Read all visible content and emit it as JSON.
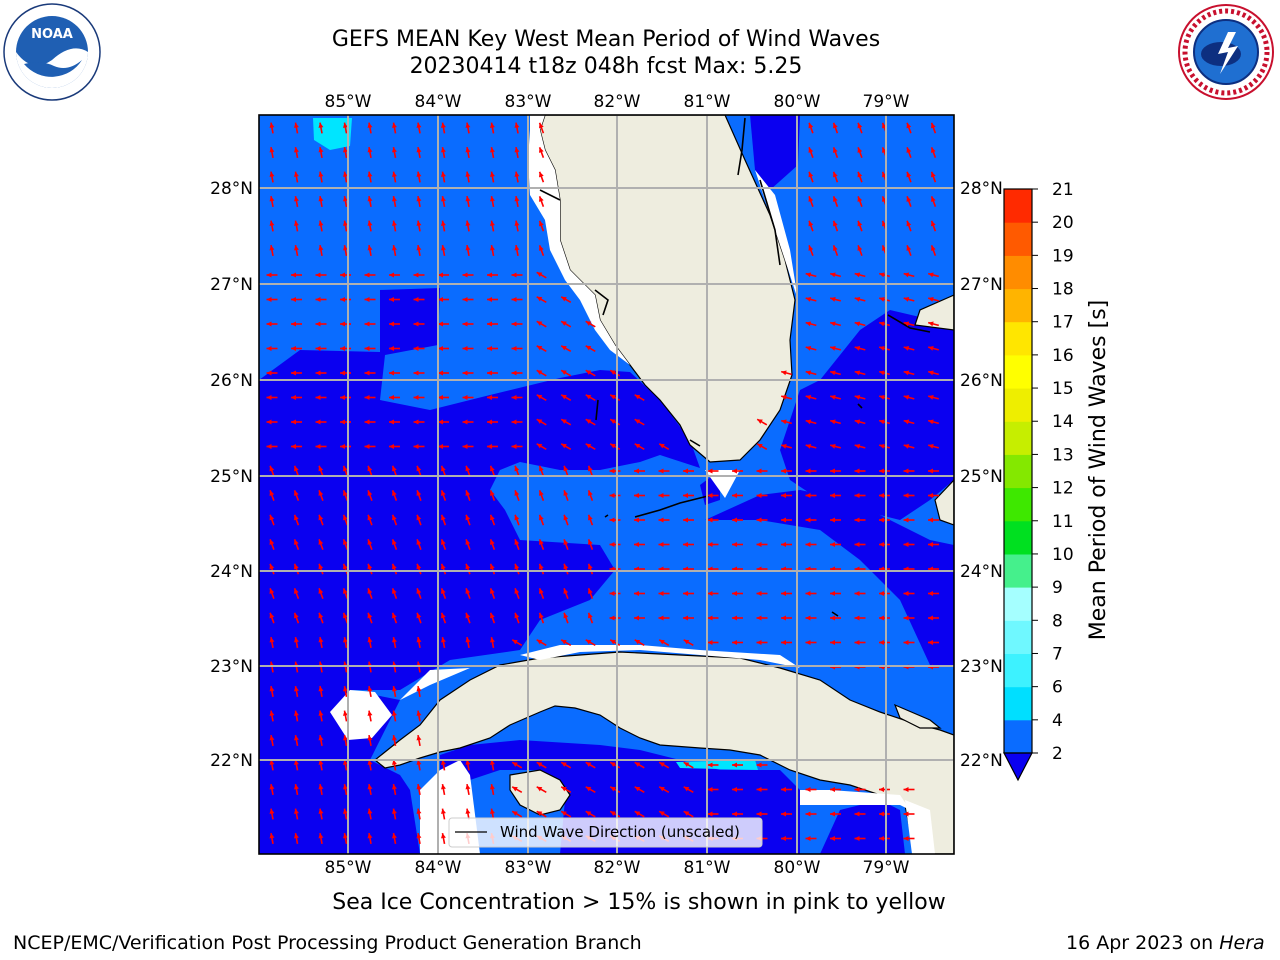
{
  "header": {
    "title_line1": "GEFS MEAN Key West Mean Period of Wind Waves",
    "title_line2": "20230414 t18z 048h fcst   Max: 5.25",
    "logo_left": "NOAA",
    "logo_right": "NATIONAL WEATHER SERVICE"
  },
  "map": {
    "lon_labels": [
      "85°W",
      "84°W",
      "83°W",
      "82°W",
      "81°W",
      "80°W",
      "79°W"
    ],
    "lat_labels": [
      "28°N",
      "27°N",
      "26°N",
      "25°N",
      "24°N",
      "23°N",
      "22°N"
    ],
    "legend_label": "Wind Wave Direction (unscaled)",
    "colors": {
      "level_2_4": "#0a6cff",
      "below_2": "#0a00f0",
      "level_4_6": "#00e5ff",
      "land": "#eeeddf",
      "arrow": "#ff0000",
      "grid": "#b0b0b0"
    }
  },
  "colorbar": {
    "label": "Mean Period of Wind Waves [s]",
    "ticks": [
      "2",
      "4",
      "6",
      "7",
      "8",
      "9",
      "10",
      "11",
      "12",
      "13",
      "14",
      "15",
      "16",
      "17",
      "18",
      "19",
      "20",
      "21"
    ],
    "colors": [
      "#0a6cff",
      "#00dfff",
      "#3df2ff",
      "#6ff8ff",
      "#a5ffff",
      "#45f08c",
      "#00e020",
      "#3ee800",
      "#84e800",
      "#c6ee00",
      "#eeee00",
      "#ffff00",
      "#ffe600",
      "#ffb400",
      "#ff8c00",
      "#ff5a00",
      "#ff2a00",
      "#ff0000"
    ],
    "extend_color": "#0a00f0"
  },
  "footer": {
    "caption": "Sea Ice Concentration > 15% is shown in pink to yellow",
    "credit": "NCEP/EMC/Verification Post Processing Product Generation Branch",
    "date": "16 Apr 2023 on ",
    "machine": "Hera"
  }
}
